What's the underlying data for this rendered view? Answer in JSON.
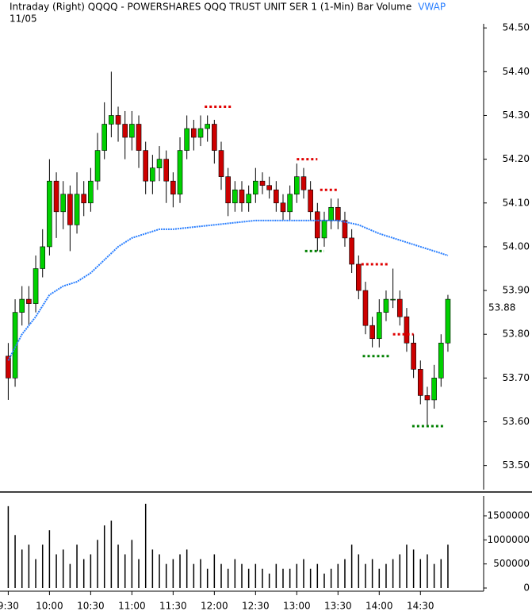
{
  "chart_data": [
    {
      "type": "candlestick",
      "title": "Intraday  (Right)  QQQQ - POWERSHARES QQQ TRUST UNIT SER 1  (1-Min)  Bar  Volume",
      "subtitle": "11/05",
      "xlim": [
        564,
        916
      ],
      "ylim": [
        53.445,
        54.513
      ],
      "yticks": [
        {
          "value": 53.5,
          "label": "53.50"
        },
        {
          "value": 53.6,
          "label": "53.60"
        },
        {
          "value": 53.7,
          "label": "53.70"
        },
        {
          "value": 53.8,
          "label": "53.80"
        },
        {
          "value": 53.9,
          "label": "53.90"
        },
        {
          "value": 54.0,
          "label": "54.00"
        },
        {
          "value": 54.1,
          "label": "54.10"
        },
        {
          "value": 54.2,
          "label": "54.20"
        },
        {
          "value": 54.3,
          "label": "54.30"
        },
        {
          "value": 54.4,
          "label": "54.40"
        },
        {
          "value": 54.5,
          "label": "54.50"
        }
      ],
      "last_price": 53.88,
      "x": [
        570,
        575,
        580,
        585,
        590,
        595,
        600,
        605,
        610,
        615,
        620,
        625,
        630,
        635,
        640,
        645,
        650,
        655,
        660,
        665,
        670,
        675,
        680,
        685,
        690,
        695,
        700,
        705,
        710,
        715,
        720,
        725,
        730,
        735,
        740,
        745,
        750,
        755,
        760,
        765,
        770,
        775,
        780,
        785,
        790,
        795,
        800,
        805,
        810,
        815,
        820,
        825,
        830,
        835,
        840,
        845,
        850,
        855,
        860,
        865,
        870,
        875,
        880,
        885,
        890
      ],
      "series": [
        {
          "type": "candlestick",
          "up_color": "#00d000",
          "down_color": "#cc0000",
          "values": [
            [
              53.75,
              53.78,
              53.65,
              53.7
            ],
            [
              53.7,
              53.88,
              53.68,
              53.85
            ],
            [
              53.85,
              53.91,
              53.82,
              53.88
            ],
            [
              53.88,
              53.91,
              53.82,
              53.87
            ],
            [
              53.87,
              53.98,
              53.85,
              53.95
            ],
            [
              53.95,
              54.04,
              53.93,
              54.0
            ],
            [
              54.0,
              54.2,
              53.98,
              54.15
            ],
            [
              54.15,
              54.17,
              54.02,
              54.08
            ],
            [
              54.08,
              54.15,
              54.04,
              54.12
            ],
            [
              54.12,
              54.14,
              53.99,
              54.05
            ],
            [
              54.05,
              54.17,
              54.03,
              54.12
            ],
            [
              54.12,
              54.15,
              54.07,
              54.1
            ],
            [
              54.1,
              54.18,
              54.08,
              54.15
            ],
            [
              54.15,
              54.26,
              54.13,
              54.22
            ],
            [
              54.22,
              54.33,
              54.2,
              54.28
            ],
            [
              54.28,
              54.4,
              54.25,
              54.3
            ],
            [
              54.3,
              54.32,
              54.24,
              54.28
            ],
            [
              54.28,
              54.31,
              54.2,
              54.25
            ],
            [
              54.25,
              54.31,
              54.22,
              54.28
            ],
            [
              54.28,
              54.3,
              54.18,
              54.22
            ],
            [
              54.22,
              54.24,
              54.12,
              54.15
            ],
            [
              54.15,
              54.21,
              54.12,
              54.18
            ],
            [
              54.18,
              54.23,
              54.15,
              54.2
            ],
            [
              54.2,
              54.22,
              54.1,
              54.15
            ],
            [
              54.15,
              54.17,
              54.09,
              54.12
            ],
            [
              54.12,
              54.25,
              54.1,
              54.22
            ],
            [
              54.22,
              54.3,
              54.2,
              54.27
            ],
            [
              54.27,
              54.29,
              54.22,
              54.25
            ],
            [
              54.25,
              54.3,
              54.23,
              54.27
            ],
            [
              54.27,
              54.3,
              54.24,
              54.28
            ],
            [
              54.28,
              54.29,
              54.19,
              54.22
            ],
            [
              54.22,
              54.24,
              54.13,
              54.16
            ],
            [
              54.16,
              54.18,
              54.07,
              54.1
            ],
            [
              54.1,
              54.15,
              54.08,
              54.13
            ],
            [
              54.13,
              54.15,
              54.08,
              54.1
            ],
            [
              54.1,
              54.14,
              54.08,
              54.12
            ],
            [
              54.12,
              54.18,
              54.1,
              54.15
            ],
            [
              54.15,
              54.17,
              54.12,
              54.14
            ],
            [
              54.14,
              54.16,
              54.11,
              54.13
            ],
            [
              54.13,
              54.15,
              54.08,
              54.1
            ],
            [
              54.1,
              54.12,
              54.06,
              54.08
            ],
            [
              54.08,
              54.14,
              54.06,
              54.12
            ],
            [
              54.12,
              54.19,
              54.1,
              54.16
            ],
            [
              54.16,
              54.18,
              54.11,
              54.13
            ],
            [
              54.13,
              54.15,
              54.06,
              54.08
            ],
            [
              54.08,
              54.1,
              53.99,
              54.02
            ],
            [
              54.02,
              54.08,
              54.0,
              54.06
            ],
            [
              54.06,
              54.11,
              54.04,
              54.09
            ],
            [
              54.09,
              54.11,
              54.04,
              54.06
            ],
            [
              54.06,
              54.08,
              54.0,
              54.02
            ],
            [
              54.02,
              54.04,
              53.94,
              53.96
            ],
            [
              53.96,
              53.98,
              53.88,
              53.9
            ],
            [
              53.9,
              53.92,
              53.8,
              53.82
            ],
            [
              53.82,
              53.84,
              53.77,
              53.79
            ],
            [
              53.79,
              53.88,
              53.77,
              53.85
            ],
            [
              53.85,
              53.9,
              53.83,
              53.88
            ],
            [
              53.88,
              53.95,
              53.86,
              53.88
            ],
            [
              53.88,
              53.9,
              53.82,
              53.84
            ],
            [
              53.84,
              53.86,
              53.76,
              53.78
            ],
            [
              53.78,
              53.8,
              53.7,
              53.72
            ],
            [
              53.72,
              53.74,
              53.64,
              53.66
            ],
            [
              53.66,
              53.68,
              53.59,
              53.65
            ],
            [
              53.65,
              53.73,
              53.63,
              53.7
            ],
            [
              53.7,
              53.8,
              53.68,
              53.78
            ],
            [
              53.78,
              53.89,
              53.76,
              53.88
            ]
          ]
        },
        {
          "type": "line",
          "name": "VWAP",
          "color": "#2a7fff",
          "x": [
            570,
            580,
            590,
            600,
            610,
            620,
            630,
            640,
            650,
            660,
            670,
            680,
            690,
            720,
            750,
            780,
            810,
            825,
            840,
            850,
            860,
            870,
            880,
            890
          ],
          "values": [
            53.74,
            53.8,
            53.84,
            53.89,
            53.91,
            53.92,
            53.94,
            53.97,
            54.0,
            54.02,
            54.03,
            54.04,
            54.04,
            54.05,
            54.06,
            54.06,
            54.06,
            54.05,
            54.03,
            54.02,
            54.01,
            54.0,
            53.99,
            53.98
          ]
        }
      ],
      "levels": [
        {
          "y": 54.32,
          "x": [
            713,
            733
          ],
          "color": "#e00000"
        },
        {
          "y": 54.2,
          "x": [
            780,
            795
          ],
          "color": "#e00000"
        },
        {
          "y": 54.13,
          "x": [
            797,
            810
          ],
          "color": "#e00000"
        },
        {
          "y": 53.96,
          "x": [
            827,
            847
          ],
          "color": "#e00000"
        },
        {
          "y": 53.8,
          "x": [
            850,
            865
          ],
          "color": "#e00000"
        },
        {
          "y": 53.99,
          "x": [
            786,
            800
          ],
          "color": "#008000"
        },
        {
          "y": 53.75,
          "x": [
            828,
            848
          ],
          "color": "#008000"
        },
        {
          "y": 53.59,
          "x": [
            864,
            887
          ],
          "color": "#008000"
        }
      ]
    },
    {
      "type": "bar",
      "xlim": [
        564,
        916
      ],
      "ylim": [
        -66000,
        1912000
      ],
      "color": "#000000",
      "yticks": [
        0,
        500000,
        1000000,
        1500000
      ],
      "xticks": [
        {
          "value": 570,
          "label": "9:30"
        },
        {
          "value": 600,
          "label": "10:00"
        },
        {
          "value": 630,
          "label": "10:30"
        },
        {
          "value": 660,
          "label": "11:00"
        },
        {
          "value": 690,
          "label": "11:30"
        },
        {
          "value": 720,
          "label": "12:00"
        },
        {
          "value": 750,
          "label": "12:30"
        },
        {
          "value": 780,
          "label": "13:00"
        },
        {
          "value": 810,
          "label": "13:30"
        },
        {
          "value": 840,
          "label": "14:00"
        },
        {
          "value": 870,
          "label": "14:30"
        }
      ],
      "x": [
        570,
        575,
        580,
        585,
        590,
        595,
        600,
        605,
        610,
        615,
        620,
        625,
        630,
        635,
        640,
        645,
        650,
        655,
        660,
        665,
        670,
        675,
        680,
        685,
        690,
        695,
        700,
        705,
        710,
        715,
        720,
        725,
        730,
        735,
        740,
        745,
        750,
        755,
        760,
        765,
        770,
        775,
        780,
        785,
        790,
        795,
        800,
        805,
        810,
        815,
        820,
        825,
        830,
        835,
        840,
        845,
        850,
        855,
        860,
        865,
        870,
        875,
        880,
        885,
        890
      ],
      "values": [
        1700000,
        1100000,
        800000,
        900000,
        600000,
        900000,
        1200000,
        700000,
        800000,
        500000,
        900000,
        600000,
        700000,
        1000000,
        1300000,
        1400000,
        900000,
        700000,
        1000000,
        600000,
        1750000,
        800000,
        700000,
        500000,
        600000,
        700000,
        800000,
        500000,
        600000,
        400000,
        700000,
        500000,
        400000,
        600000,
        500000,
        400000,
        500000,
        400000,
        300000,
        500000,
        400000,
        400000,
        500000,
        600000,
        400000,
        500000,
        300000,
        400000,
        500000,
        600000,
        900000,
        700000,
        500000,
        600000,
        400000,
        500000,
        600000,
        700000,
        900000,
        800000,
        600000,
        700000,
        500000,
        600000,
        900000
      ]
    }
  ]
}
